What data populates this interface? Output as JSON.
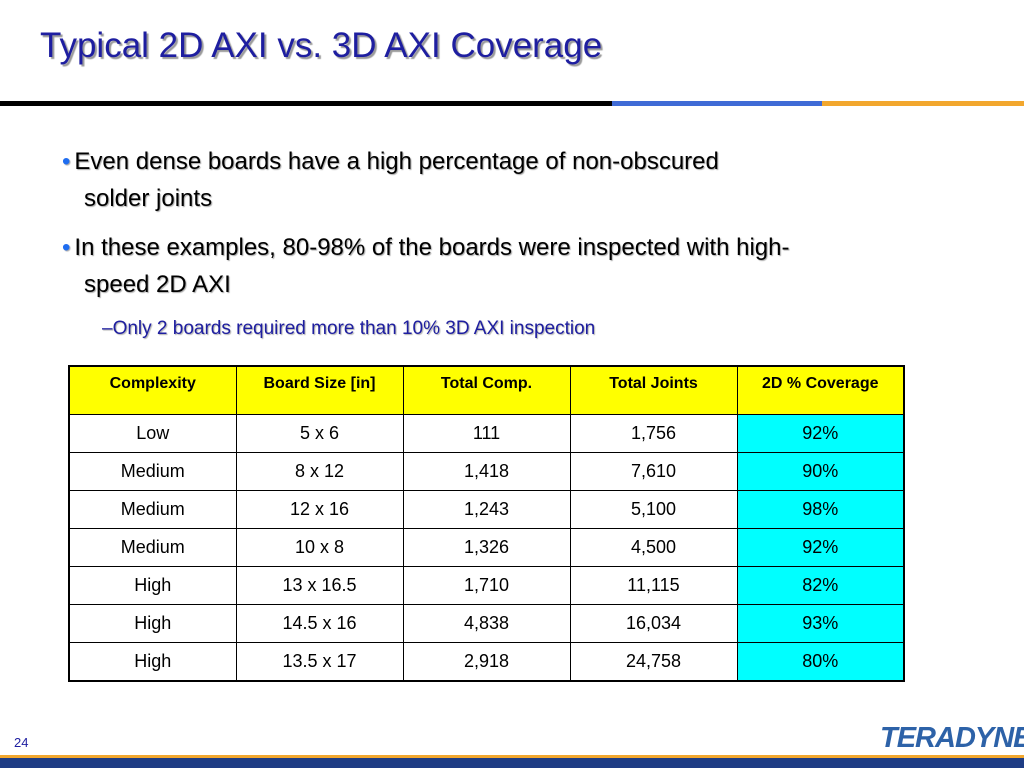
{
  "slide": {
    "title": "Typical 2D AXI vs. 3D AXI Coverage",
    "page_number": "24",
    "logo_text": "TERADYNE"
  },
  "bullets": [
    {
      "line1": "Even dense boards have a high percentage of non-obscured",
      "line2": "solder joints"
    },
    {
      "line1": "In these examples, 80-98% of the boards were inspected with high-",
      "line2": "speed 2D AXI"
    }
  ],
  "sub_bullet": "–Only 2 boards required more than 10% 3D AXI inspection",
  "table": {
    "headers": [
      "Complexity",
      "Board Size [in]",
      "Total Comp.",
      "Total Joints",
      "2D % Coverage"
    ],
    "rows": [
      [
        "Low",
        "5 x 6",
        "111",
        "1,756",
        "92%"
      ],
      [
        "Medium",
        "8 x 12",
        "1,418",
        "7,610",
        "90%"
      ],
      [
        "Medium",
        "12 x 16",
        "1,243",
        "5,100",
        "98%"
      ],
      [
        "Medium",
        "10 x 8",
        "1,326",
        "4,500",
        "92%"
      ],
      [
        "High",
        "13 x 16.5",
        "1,710",
        "11,115",
        "82%"
      ],
      [
        "High",
        "14.5 x 16",
        "4,838",
        "16,034",
        "93%"
      ],
      [
        "High",
        "13.5 x 17",
        "2,918",
        "24,758",
        "80%"
      ]
    ]
  },
  "colors": {
    "title": "#1e1ea0",
    "bullet_dot": "#1f6df0",
    "header_fill": "#ffff00",
    "coverage_fill": "#00ffff",
    "rule_blue": "#3f6bd6",
    "rule_gold": "#f2a72e"
  }
}
